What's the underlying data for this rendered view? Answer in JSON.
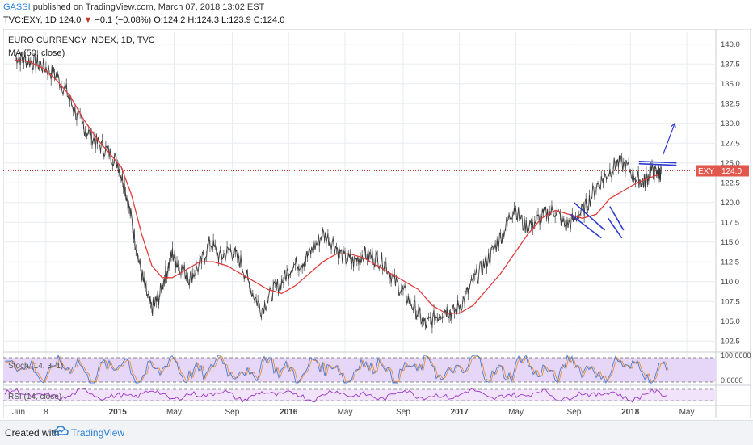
{
  "header": {
    "author": "GASSI",
    "published": "published on TradingView.com, March 07, 2018 13:02 EST",
    "symbol": "TVC:EXY, 1D",
    "last": "124.0",
    "change": "−0.1 (−0.08%)",
    "open": "O:124.2",
    "high": "H:124.3",
    "low": "L:123.9",
    "close": "C:124.0"
  },
  "footer": {
    "created": "Created with",
    "brand": "TradingView"
  },
  "chart_data": {
    "type": "line",
    "title": "EURO CURRENCY INDEX, 1D, TVC",
    "indicator_label": "MA (50, close)",
    "price_axis": {
      "ticks": [
        "140.0",
        "137.5",
        "135.0",
        "132.5",
        "130.0",
        "127.5",
        "125.0",
        "122.5",
        "120.0",
        "117.5",
        "115.0",
        "112.5",
        "110.0",
        "107.5",
        "105.0",
        "102.5"
      ],
      "ylim": [
        101.5,
        141.5
      ]
    },
    "time_axis": [
      "Jun",
      "8",
      "2015",
      "May",
      "Sep",
      "2016",
      "May",
      "Sep",
      "2017",
      "May",
      "Sep",
      "2018",
      "May"
    ],
    "current_price": {
      "label": "EXY",
      "value": "124.0"
    },
    "series": [
      {
        "name": "price",
        "color": "#3a3a3a",
        "x": [
          2014.4,
          2014.46,
          2014.52,
          2014.58,
          2014.64,
          2014.7,
          2014.76,
          2014.82,
          2014.88,
          2014.94,
          2015.0,
          2015.04,
          2015.08,
          2015.12,
          2015.16,
          2015.2,
          2015.24,
          2015.28,
          2015.32,
          2015.36,
          2015.42,
          2015.48,
          2015.54,
          2015.6,
          2015.66,
          2015.72,
          2015.78,
          2015.84,
          2015.9,
          2015.96,
          2016.02,
          2016.08,
          2016.14,
          2016.2,
          2016.26,
          2016.32,
          2016.38,
          2016.44,
          2016.5,
          2016.56,
          2016.62,
          2016.68,
          2016.74,
          2016.8,
          2016.86,
          2016.92,
          2016.96,
          2017.02,
          2017.08,
          2017.14,
          2017.2,
          2017.26,
          2017.32,
          2017.38,
          2017.44,
          2017.5,
          2017.56,
          2017.62,
          2017.68,
          2017.74,
          2017.8,
          2017.86,
          2017.92,
          2017.98,
          2018.04,
          2018.08,
          2018.12,
          2018.16,
          2018.18
        ],
        "values": [
          138.5,
          138.0,
          137.6,
          137.0,
          136.0,
          134.0,
          131.0,
          129.0,
          127.5,
          126.5,
          125.0,
          122.0,
          118.0,
          113.0,
          109.0,
          106.5,
          108.0,
          111.0,
          113.5,
          112.0,
          110.5,
          112.0,
          115.0,
          113.0,
          114.0,
          112.5,
          109.0,
          106.5,
          108.5,
          110.0,
          112.0,
          112.5,
          114.0,
          116.0,
          115.0,
          113.0,
          112.5,
          113.5,
          113.0,
          112.5,
          110.0,
          108.5,
          106.5,
          104.5,
          105.5,
          106.5,
          106.0,
          107.5,
          110.0,
          112.0,
          114.0,
          116.5,
          119.5,
          117.0,
          117.5,
          118.5,
          119.0,
          117.0,
          118.0,
          119.5,
          122.0,
          123.5,
          125.0,
          124.5,
          123.0,
          122.5,
          124.0,
          123.5,
          124.0
        ]
      },
      {
        "name": "MA (50, close)",
        "color": "#e03c3c",
        "x": [
          2014.4,
          2014.48,
          2014.56,
          2014.64,
          2014.72,
          2014.8,
          2014.88,
          2014.96,
          2015.02,
          2015.08,
          2015.14,
          2015.2,
          2015.26,
          2015.32,
          2015.4,
          2015.48,
          2015.56,
          2015.64,
          2015.72,
          2015.8,
          2015.88,
          2015.96,
          2016.04,
          2016.12,
          2016.2,
          2016.28,
          2016.36,
          2016.44,
          2016.52,
          2016.6,
          2016.68,
          2016.76,
          2016.84,
          2016.92,
          2017.0,
          2017.08,
          2017.16,
          2017.24,
          2017.32,
          2017.4,
          2017.48,
          2017.56,
          2017.64,
          2017.72,
          2017.8,
          2017.88,
          2017.96,
          2018.04,
          2018.1,
          2018.16
        ],
        "values": [
          138.0,
          137.8,
          137.0,
          135.5,
          133.5,
          130.5,
          128.0,
          126.0,
          124.5,
          121.0,
          116.0,
          112.0,
          110.5,
          110.5,
          111.5,
          112.5,
          112.5,
          112.0,
          111.0,
          110.0,
          109.0,
          108.5,
          109.5,
          111.0,
          112.5,
          113.5,
          113.5,
          113.0,
          112.0,
          111.0,
          110.0,
          109.0,
          107.0,
          106.0,
          106.0,
          107.0,
          109.0,
          111.0,
          113.5,
          116.0,
          118.0,
          119.0,
          118.5,
          118.0,
          118.5,
          120.5,
          121.5,
          122.5,
          123.0,
          123.5
        ]
      }
    ],
    "annotations": [
      {
        "type": "channel",
        "color": "#2b3bd1",
        "lines": [
          [
            [
              2017.67,
              120.0
            ],
            [
              2017.85,
              116.5
            ]
          ],
          [
            [
              2017.65,
              118.5
            ],
            [
              2017.83,
              115.5
            ]
          ]
        ]
      },
      {
        "type": "channel",
        "color": "#2b3bd1",
        "lines": [
          [
            [
              2017.88,
              119.5
            ],
            [
              2017.96,
              116.5
            ]
          ],
          [
            [
              2017.87,
              118.0
            ],
            [
              2017.95,
              115.5
            ]
          ]
        ]
      },
      {
        "type": "line",
        "color": "#2b3bd1",
        "points": [
          [
            2018.05,
            125.2
          ],
          [
            2018.27,
            125.0
          ]
        ]
      },
      {
        "type": "line",
        "color": "#2b3bd1",
        "points": [
          [
            2018.05,
            124.9
          ],
          [
            2018.27,
            124.7
          ]
        ]
      },
      {
        "type": "arrow",
        "color": "#2b3bd1",
        "points": [
          [
            2018.19,
            126.0
          ],
          [
            2018.26,
            130.0
          ]
        ]
      }
    ]
  },
  "indicators": {
    "stoch": {
      "label": "Stoch (14, 3, 1)",
      "ticks": [
        "100.0000",
        "0.0000"
      ],
      "fill": "#e6d6f7",
      "k_color": "#4b7ad6",
      "d_color": "#e08a2c"
    },
    "rsi": {
      "label": "RSI (14, close)",
      "ticks": [],
      "fill": "#f0e3fa",
      "color": "#9a38c4"
    }
  },
  "colors": {
    "grid": "#e8ebef",
    "axis": "#c9ced6",
    "price_line": "#c0392b",
    "badge": "#e2574c"
  }
}
